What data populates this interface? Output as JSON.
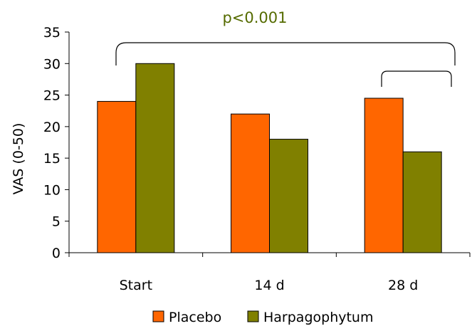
{
  "chart_data": {
    "type": "bar",
    "categories": [
      "Start",
      "14 d",
      "28 d"
    ],
    "series": [
      {
        "name": "Placebo",
        "values": [
          24,
          22,
          24.5
        ],
        "color": "#ff6600"
      },
      {
        "name": "Harpagophytum",
        "values": [
          30,
          18,
          16
        ],
        "color": "#808000"
      }
    ],
    "title": "",
    "xlabel": "",
    "ylabel": "VAS (0-50)",
    "ylim": [
      0,
      35
    ],
    "yticks": [
      0,
      5,
      10,
      15,
      20,
      25,
      30,
      35
    ],
    "grid": false,
    "legend_position": "bottom",
    "annotations": [
      {
        "text": "p<0.001",
        "color": "#556b00"
      }
    ]
  }
}
